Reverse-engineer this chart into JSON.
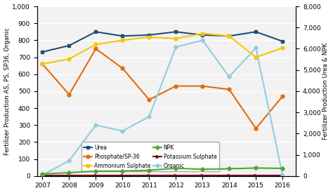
{
  "years": [
    2007,
    2008,
    2009,
    2010,
    2011,
    2012,
    2013,
    2014,
    2015,
    2016
  ],
  "urea": [
    5850,
    6150,
    6800,
    6600,
    6650,
    6800,
    6650,
    6600,
    6800,
    6350
  ],
  "ammonium_sulphate": [
    5280,
    5520,
    6200,
    6400,
    6550,
    6480,
    6720,
    6600,
    5600,
    6040
  ],
  "phosphate": [
    660,
    480,
    750,
    635,
    450,
    530,
    530,
    510,
    280,
    470
  ],
  "npk": [
    97,
    155,
    228,
    230,
    270,
    362,
    315,
    340,
    375,
    357
  ],
  "potassium_sulphate": [
    5,
    5,
    5,
    5,
    5,
    5,
    5,
    5,
    5,
    5
  ],
  "organic": [
    5,
    90,
    300,
    265,
    350,
    760,
    800,
    585,
    755,
    5
  ],
  "left_ylim": [
    0,
    1000
  ],
  "right_ylim": [
    0,
    8000
  ],
  "left_yticks": [
    0,
    100,
    200,
    300,
    400,
    500,
    600,
    700,
    800,
    900,
    1000
  ],
  "right_yticks": [
    0,
    1000,
    2000,
    3000,
    4000,
    5000,
    6000,
    7000,
    8000
  ],
  "left_ylabel": "Fertilizer Production AS, PS, SP36, Organic",
  "right_ylabel": "Fertilizer Production Urea & NPK",
  "urea_color": "#1f4e79",
  "phosphate_color": "#e36c0a",
  "ammonium_color": "#f5c700",
  "npk_color": "#4ea72c",
  "potassium_color": "#7b0020",
  "organic_color": "#92cddc",
  "bg_color": "#f2f2f2",
  "legend_labels": [
    "Urea",
    "Phosphate/SP-36",
    "Ammonium Sulphate",
    "NPK",
    "Potassium Sulphate",
    "Organic"
  ]
}
